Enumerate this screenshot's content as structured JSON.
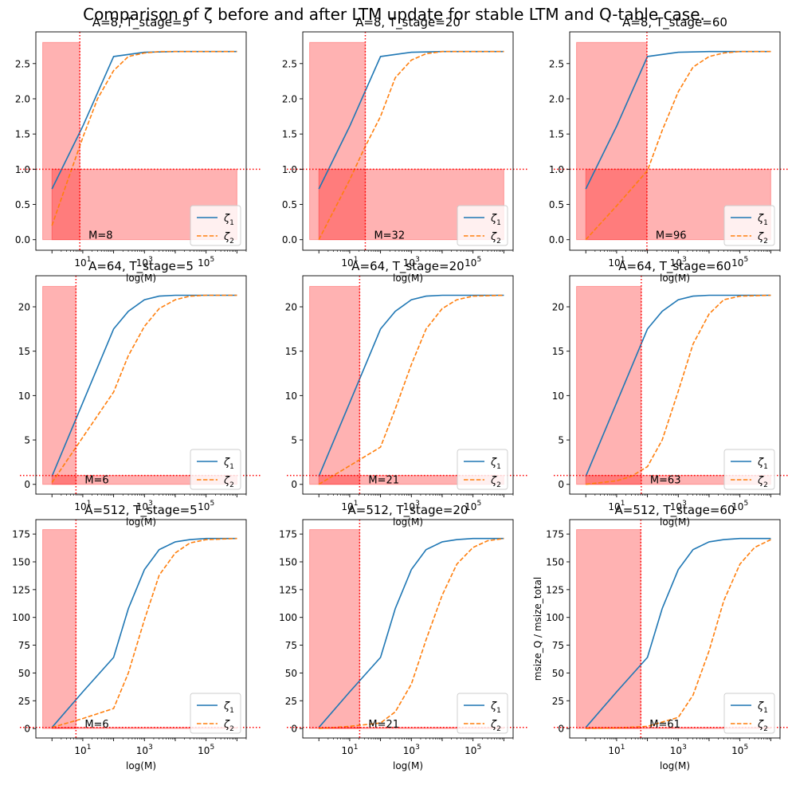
{
  "suptitle": "Comparison of ζ before and after LTM update for stable LTM and Q-table case.",
  "colors": {
    "zeta1": "#1f77b4",
    "zeta2": "#ff7f0e",
    "shade": "#ff0000",
    "guide": "#ff0000"
  },
  "chart_data": [
    {
      "type": "line",
      "title": "A=8, T_stage=5",
      "xlabel": "log(M)",
      "ylabel": "",
      "xscale": "log",
      "xlim": [
        0.3,
        2000000
      ],
      "ylim": [
        -0.15,
        2.95
      ],
      "yticks": [
        0,
        0.5,
        1,
        1.5,
        2,
        2.5
      ],
      "yticklabels": [
        "0.0",
        "0.5",
        "1.0",
        "1.5",
        "2.0",
        "2.5"
      ],
      "xticks": [
        10,
        1000,
        100000
      ],
      "xticklabels": [
        "10^1",
        "10^3",
        "10^5"
      ],
      "hline": 1,
      "vline": 8,
      "vline_label": "M=8",
      "rect_top": 2.8,
      "rect_bottom_width": 1000000,
      "legend": [
        "ζ1",
        "ζ2"
      ],
      "series": [
        {
          "name": "ζ1",
          "x": [
            1,
            10,
            100,
            1000,
            10000,
            100000,
            1000000
          ],
          "y": [
            0.72,
            1.61,
            2.6,
            2.66,
            2.67,
            2.67,
            2.67
          ]
        },
        {
          "name": "ζ2",
          "x": [
            1,
            3,
            10,
            30,
            100,
            300,
            1000,
            3000,
            10000,
            100000,
            1000000
          ],
          "y": [
            0.2,
            0.8,
            1.45,
            2.0,
            2.4,
            2.6,
            2.65,
            2.67,
            2.67,
            2.67,
            2.67
          ]
        }
      ]
    },
    {
      "type": "line",
      "title": "A=8, T_stage=20",
      "xlabel": "log(M)",
      "ylabel": "",
      "xscale": "log",
      "xlim": [
        0.3,
        2000000
      ],
      "ylim": [
        -0.15,
        2.95
      ],
      "yticks": [
        0,
        0.5,
        1,
        1.5,
        2,
        2.5
      ],
      "yticklabels": [
        "0.0",
        "0.5",
        "1.0",
        "1.5",
        "2.0",
        "2.5"
      ],
      "xticks": [
        10,
        1000,
        100000
      ],
      "xticklabels": [
        "10^1",
        "10^3",
        "10^5"
      ],
      "hline": 1,
      "vline": 32,
      "vline_label": "M=32",
      "rect_top": 2.8,
      "rect_bottom_width": 1000000,
      "legend": [
        "ζ1",
        "ζ2"
      ],
      "series": [
        {
          "name": "ζ1",
          "x": [
            1,
            10,
            100,
            1000,
            10000,
            100000,
            1000000
          ],
          "y": [
            0.72,
            1.61,
            2.6,
            2.66,
            2.67,
            2.67,
            2.67
          ]
        },
        {
          "name": "ζ2",
          "x": [
            1,
            10,
            30,
            100,
            300,
            1000,
            3000,
            10000,
            100000,
            1000000
          ],
          "y": [
            0.0,
            0.85,
            1.3,
            1.75,
            2.3,
            2.55,
            2.64,
            2.67,
            2.67,
            2.67
          ]
        }
      ]
    },
    {
      "type": "line",
      "title": "A=8, T_stage=60",
      "xlabel": "log(M)",
      "ylabel": "",
      "xscale": "log",
      "xlim": [
        0.3,
        2000000
      ],
      "ylim": [
        -0.15,
        2.95
      ],
      "yticks": [
        0,
        0.5,
        1,
        1.5,
        2,
        2.5
      ],
      "yticklabels": [
        "0.0",
        "0.5",
        "1.0",
        "1.5",
        "2.0",
        "2.5"
      ],
      "xticks": [
        10,
        1000,
        100000
      ],
      "xticklabels": [
        "10^1",
        "10^3",
        "10^5"
      ],
      "hline": 1,
      "vline": 96,
      "vline_label": "M=96",
      "rect_top": 2.8,
      "rect_bottom_width": 1000000,
      "legend": [
        "ζ1",
        "ζ2"
      ],
      "series": [
        {
          "name": "ζ1",
          "x": [
            1,
            10,
            100,
            1000,
            10000,
            100000,
            1000000
          ],
          "y": [
            0.72,
            1.61,
            2.6,
            2.66,
            2.67,
            2.67,
            2.67
          ]
        },
        {
          "name": "ζ2",
          "x": [
            1,
            10,
            100,
            300,
            1000,
            3000,
            10000,
            30000,
            100000,
            1000000
          ],
          "y": [
            0.0,
            0.48,
            0.98,
            1.55,
            2.1,
            2.45,
            2.6,
            2.65,
            2.67,
            2.67
          ]
        }
      ]
    },
    {
      "type": "line",
      "title": "A=64, T_stage=5",
      "xlabel": "log(M)",
      "ylabel": "",
      "xscale": "log",
      "xlim": [
        0.3,
        2000000
      ],
      "ylim": [
        -1.1,
        23.5
      ],
      "yticks": [
        0,
        5,
        10,
        15,
        20
      ],
      "yticklabels": [
        "0",
        "5",
        "10",
        "15",
        "20"
      ],
      "xticks": [
        10,
        1000,
        100000
      ],
      "xticklabels": [
        "10^1",
        "10^3",
        "10^5"
      ],
      "hline": 1,
      "vline": 6,
      "vline_label": "M=6",
      "rect_top": 22.3,
      "rect_bottom_width": 1000000,
      "legend": [
        "ζ1",
        "ζ2"
      ],
      "series": [
        {
          "name": "ζ1",
          "x": [
            1,
            10,
            100,
            300,
            1000,
            3000,
            10000,
            100000,
            1000000
          ],
          "y": [
            0.9,
            9.2,
            17.5,
            19.5,
            20.8,
            21.2,
            21.3,
            21.3,
            21.3
          ]
        },
        {
          "name": "ζ2",
          "x": [
            1,
            10,
            100,
            300,
            1000,
            3000,
            10000,
            30000,
            100000,
            1000000
          ],
          "y": [
            0.2,
            5.3,
            10.4,
            14.5,
            17.8,
            19.8,
            20.8,
            21.2,
            21.3,
            21.3
          ]
        }
      ]
    },
    {
      "type": "line",
      "title": "A=64, T_stage=20",
      "xlabel": "log(M)",
      "ylabel": "",
      "xscale": "log",
      "xlim": [
        0.3,
        2000000
      ],
      "ylim": [
        -1.1,
        23.5
      ],
      "yticks": [
        0,
        5,
        10,
        15,
        20
      ],
      "yticklabels": [
        "0",
        "5",
        "10",
        "15",
        "20"
      ],
      "xticks": [
        10,
        1000,
        100000
      ],
      "xticklabels": [
        "10^1",
        "10^3",
        "10^5"
      ],
      "hline": 1,
      "vline": 21,
      "vline_label": "M=21",
      "rect_top": 22.3,
      "rect_bottom_width": 1000000,
      "legend": [
        "ζ1",
        "ζ2"
      ],
      "series": [
        {
          "name": "ζ1",
          "x": [
            1,
            10,
            100,
            300,
            1000,
            3000,
            10000,
            100000,
            1000000
          ],
          "y": [
            0.9,
            9.2,
            17.5,
            19.5,
            20.8,
            21.2,
            21.3,
            21.3,
            21.3
          ]
        },
        {
          "name": "ζ2",
          "x": [
            1,
            10,
            100,
            300,
            1000,
            3000,
            10000,
            30000,
            100000,
            1000000
          ],
          "y": [
            0.0,
            2.1,
            4.2,
            8.5,
            13.5,
            17.5,
            19.8,
            20.8,
            21.2,
            21.3
          ]
        }
      ]
    },
    {
      "type": "line",
      "title": "A=64, T_stage=60",
      "xlabel": "log(M)",
      "ylabel": "",
      "xscale": "log",
      "xlim": [
        0.3,
        2000000
      ],
      "ylim": [
        -1.1,
        23.5
      ],
      "yticks": [
        0,
        5,
        10,
        15,
        20
      ],
      "yticklabels": [
        "0",
        "5",
        "10",
        "15",
        "20"
      ],
      "xticks": [
        10,
        1000,
        100000
      ],
      "xticklabels": [
        "10^1",
        "10^3",
        "10^5"
      ],
      "hline": 1,
      "vline": 63,
      "vline_label": "M=63",
      "rect_top": 22.3,
      "rect_bottom_width": 1000000,
      "legend": [
        "ζ1",
        "ζ2"
      ],
      "series": [
        {
          "name": "ζ1",
          "x": [
            1,
            10,
            100,
            300,
            1000,
            3000,
            10000,
            100000,
            1000000
          ],
          "y": [
            0.9,
            9.2,
            17.5,
            19.5,
            20.8,
            21.2,
            21.3,
            21.3,
            21.3
          ]
        },
        {
          "name": "ζ2",
          "x": [
            1,
            10,
            30,
            100,
            300,
            1000,
            3000,
            10000,
            30000,
            100000,
            1000000
          ],
          "y": [
            0.0,
            0.4,
            0.9,
            2.0,
            5.0,
            10.5,
            15.8,
            19.2,
            20.8,
            21.2,
            21.3
          ]
        }
      ]
    },
    {
      "type": "line",
      "title": "A=512, T_stage=5",
      "xlabel": "log(M)",
      "ylabel": "",
      "xscale": "log",
      "xlim": [
        0.3,
        2000000
      ],
      "ylim": [
        -8.5,
        188
      ],
      "yticks": [
        0,
        25,
        50,
        75,
        100,
        125,
        150,
        175
      ],
      "yticklabels": [
        "0",
        "25",
        "50",
        "75",
        "100",
        "125",
        "150",
        "175"
      ],
      "xticks": [
        10,
        1000,
        100000
      ],
      "xticklabels": [
        "10^1",
        "10^3",
        "10^5"
      ],
      "hline": 1,
      "vline": 6,
      "vline_label": "M=6",
      "rect_top": 179,
      "rect_bottom_width": 1000000,
      "legend": [
        "ζ1",
        "ζ2"
      ],
      "series": [
        {
          "name": "ζ1",
          "x": [
            1,
            10,
            100,
            300,
            1000,
            3000,
            10000,
            30000,
            100000,
            1000000
          ],
          "y": [
            1,
            33,
            64,
            108,
            143,
            161,
            168,
            170,
            171,
            171
          ]
        },
        {
          "name": "ζ2",
          "x": [
            1,
            10,
            100,
            300,
            1000,
            3000,
            10000,
            30000,
            100000,
            1000000
          ],
          "y": [
            1,
            9,
            18,
            50,
            98,
            138,
            158,
            167,
            170,
            171
          ]
        }
      ]
    },
    {
      "type": "line",
      "title": "A=512, T_stage=20",
      "xlabel": "log(M)",
      "ylabel": "",
      "xscale": "log",
      "xlim": [
        0.3,
        2000000
      ],
      "ylim": [
        -8.5,
        188
      ],
      "yticks": [
        0,
        25,
        50,
        75,
        100,
        125,
        150,
        175
      ],
      "yticklabels": [
        "0",
        "25",
        "50",
        "75",
        "100",
        "125",
        "150",
        "175"
      ],
      "xticks": [
        10,
        1000,
        100000
      ],
      "xticklabels": [
        "10^1",
        "10^3",
        "10^5"
      ],
      "hline": 1,
      "vline": 21,
      "vline_label": "M=21",
      "rect_top": 179,
      "rect_bottom_width": 1000000,
      "legend": [
        "ζ1",
        "ζ2"
      ],
      "series": [
        {
          "name": "ζ1",
          "x": [
            1,
            10,
            100,
            300,
            1000,
            3000,
            10000,
            30000,
            100000,
            1000000
          ],
          "y": [
            1,
            33,
            64,
            108,
            143,
            161,
            168,
            170,
            171,
            171
          ]
        },
        {
          "name": "ζ2",
          "x": [
            1,
            10,
            100,
            300,
            1000,
            3000,
            10000,
            30000,
            100000,
            300000,
            1000000
          ],
          "y": [
            0,
            2,
            5,
            15,
            40,
            80,
            120,
            148,
            163,
            169,
            171
          ]
        }
      ]
    },
    {
      "type": "line",
      "title": "A=512, T_stage=60",
      "xlabel": "log(M)",
      "ylabel": "msize_Q / msize_total",
      "xscale": "log",
      "xlim": [
        0.3,
        2000000
      ],
      "ylim": [
        -8.5,
        188
      ],
      "yticks": [
        0,
        25,
        50,
        75,
        100,
        125,
        150,
        175
      ],
      "yticklabels": [
        "0",
        "25",
        "50",
        "75",
        "100",
        "125",
        "150",
        "175"
      ],
      "xticks": [
        10,
        1000,
        100000
      ],
      "xticklabels": [
        "10^1",
        "10^3",
        "10^5"
      ],
      "hline": 1,
      "vline": 61,
      "vline_label": "M=61",
      "rect_top": 179,
      "rect_bottom_width": 1000000,
      "legend": [
        "ζ1",
        "ζ2"
      ],
      "series": [
        {
          "name": "ζ1",
          "x": [
            1,
            10,
            100,
            300,
            1000,
            3000,
            10000,
            30000,
            100000,
            1000000
          ],
          "y": [
            1,
            33,
            64,
            108,
            143,
            161,
            168,
            170,
            171,
            171
          ]
        },
        {
          "name": "ζ2",
          "x": [
            1,
            10,
            100,
            1000,
            3000,
            10000,
            30000,
            100000,
            300000,
            1000000
          ],
          "y": [
            0,
            0.5,
            2,
            10,
            30,
            70,
            115,
            148,
            163,
            170
          ]
        }
      ]
    }
  ]
}
